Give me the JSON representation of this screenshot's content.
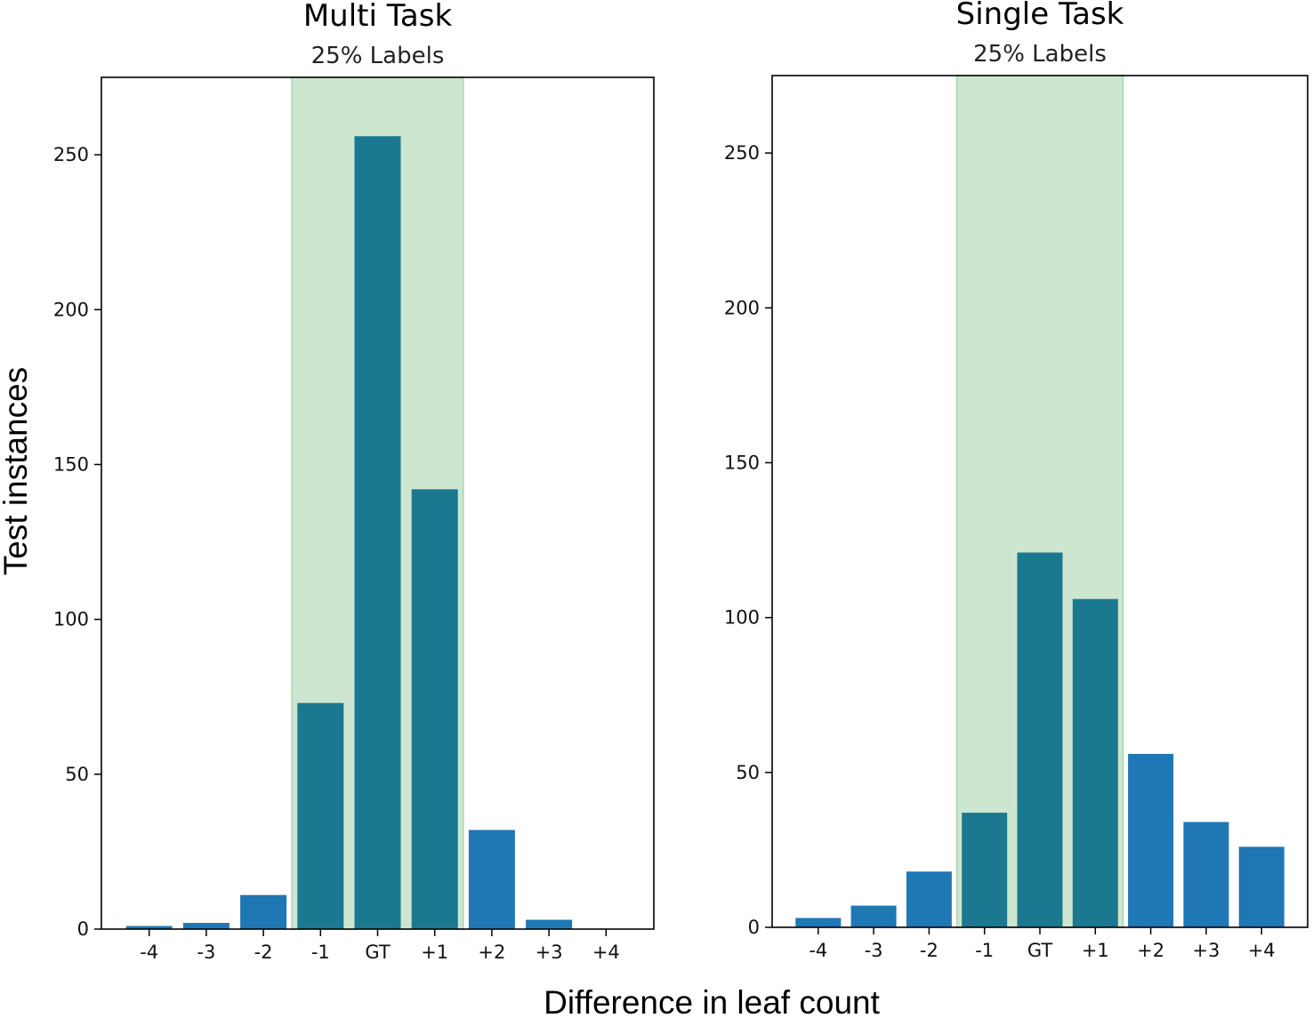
{
  "ylabel": "Test instances",
  "xlabel": "Difference in leaf count",
  "chart_data": [
    {
      "type": "bar",
      "title": "Multi Task",
      "subtitle": "25% Labels",
      "categories": [
        "-4",
        "-3",
        "-2",
        "-1",
        "GT",
        "+1",
        "+2",
        "+3",
        "+4"
      ],
      "values": [
        1,
        2,
        11,
        73,
        256,
        142,
        32,
        3,
        0
      ],
      "highlight_categories": [
        "-1",
        "GT",
        "+1"
      ],
      "ylim": [
        0,
        275
      ],
      "yticks": [
        0,
        50,
        100,
        150,
        200,
        250
      ],
      "colors": {
        "bar": "#1f77b4",
        "bar_highlighted": "#1a7890",
        "band": "#cde6d0",
        "band_edge": "#a9d4ae"
      }
    },
    {
      "type": "bar",
      "title": "Single Task",
      "subtitle": "25% Labels",
      "categories": [
        "-4",
        "-3",
        "-2",
        "-1",
        "GT",
        "+1",
        "+2",
        "+3",
        "+4"
      ],
      "values": [
        3,
        7,
        18,
        37,
        121,
        106,
        56,
        34,
        26
      ],
      "highlight_categories": [
        "-1",
        "GT",
        "+1"
      ],
      "ylim": [
        0,
        275
      ],
      "yticks": [
        0,
        50,
        100,
        150,
        200,
        250
      ],
      "colors": {
        "bar": "#1f77b4",
        "bar_highlighted": "#1a7890",
        "band": "#cde6d0",
        "band_edge": "#a9d4ae"
      }
    }
  ]
}
